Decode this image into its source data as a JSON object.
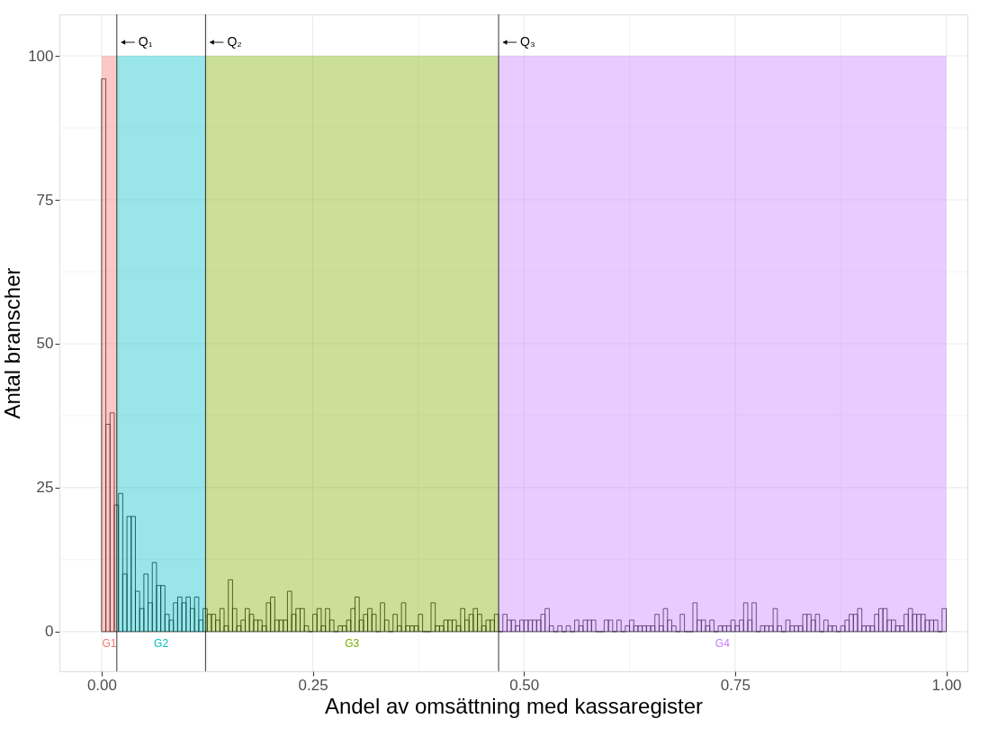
{
  "chart_data": {
    "type": "histogram",
    "xlabel": "Andel av omsättning med kassaregister",
    "ylabel": "Antal branscher",
    "bins": [
      0,
      0.005,
      0.01,
      0.015,
      0.02,
      0.025,
      0.03,
      0.035,
      0.04,
      0.045,
      0.05,
      0.055,
      0.06,
      0.065,
      0.07,
      0.075,
      0.08,
      0.085,
      0.09,
      0.095,
      0.1,
      0.105,
      0.11,
      0.115,
      0.12,
      0.125,
      0.13,
      0.135,
      0.14,
      0.145,
      0.15,
      0.155,
      0.16,
      0.165,
      0.17,
      0.175,
      0.18,
      0.185,
      0.19,
      0.195,
      0.2,
      0.205,
      0.21,
      0.215,
      0.22,
      0.225,
      0.23,
      0.235,
      0.24,
      0.245,
      0.25,
      0.255,
      0.26,
      0.265,
      0.27,
      0.275,
      0.28,
      0.285,
      0.29,
      0.295,
      0.3,
      0.305,
      0.31,
      0.315,
      0.32,
      0.325,
      0.33,
      0.335,
      0.34,
      0.345,
      0.35,
      0.355,
      0.36,
      0.365,
      0.37,
      0.375,
      0.38,
      0.385,
      0.39,
      0.395,
      0.4,
      0.405,
      0.41,
      0.415,
      0.42,
      0.425,
      0.43,
      0.435,
      0.44,
      0.445,
      0.45,
      0.455,
      0.46,
      0.465,
      0.47,
      0.475,
      0.48,
      0.485,
      0.49,
      0.495,
      0.5,
      0.505,
      0.51,
      0.515,
      0.52,
      0.525,
      0.53,
      0.535,
      0.54,
      0.545,
      0.55,
      0.555,
      0.56,
      0.565,
      0.57,
      0.575,
      0.58,
      0.585,
      0.59,
      0.595,
      0.6,
      0.605,
      0.61,
      0.615,
      0.62,
      0.625,
      0.63,
      0.635,
      0.64,
      0.645,
      0.65,
      0.655,
      0.66,
      0.665,
      0.67,
      0.675,
      0.68,
      0.685,
      0.69,
      0.695,
      0.7,
      0.705,
      0.71,
      0.715,
      0.72,
      0.725,
      0.73,
      0.735,
      0.74,
      0.745,
      0.75,
      0.755,
      0.76,
      0.765,
      0.77,
      0.775,
      0.78,
      0.785,
      0.79,
      0.795,
      0.8,
      0.805,
      0.81,
      0.815,
      0.82,
      0.825,
      0.83,
      0.835,
      0.84,
      0.845,
      0.85,
      0.855,
      0.86,
      0.865,
      0.87,
      0.875,
      0.88,
      0.885,
      0.89,
      0.895,
      0.9,
      0.905,
      0.91,
      0.915,
      0.92,
      0.925,
      0.93,
      0.935,
      0.94,
      0.945,
      0.95,
      0.955,
      0.96,
      0.965,
      0.97,
      0.975,
      0.98,
      0.985,
      0.99,
      0.995,
      1
    ],
    "values": [
      96,
      36,
      38,
      22,
      24,
      10,
      20,
      20,
      7,
      4,
      10,
      5,
      12,
      8,
      8,
      3,
      2,
      5,
      6,
      5,
      6,
      4,
      6,
      2,
      4,
      3,
      3,
      2,
      4,
      1,
      9,
      4,
      1,
      2,
      4,
      3,
      2,
      2,
      1,
      5,
      6,
      2,
      2,
      2,
      7,
      3,
      4,
      4,
      1,
      0,
      3,
      4,
      1,
      4,
      2,
      0,
      1,
      1,
      2,
      4,
      6,
      2,
      3,
      4,
      3,
      0,
      5,
      2,
      0,
      3,
      1,
      5,
      1,
      1,
      1,
      3,
      0,
      0,
      5,
      1,
      1,
      2,
      2,
      2,
      1,
      4,
      2,
      3,
      4,
      3,
      1,
      2,
      2,
      3,
      0,
      3,
      2,
      2,
      1,
      2,
      2,
      2,
      2,
      2,
      3,
      4,
      1,
      0,
      1,
      0,
      1,
      0,
      2,
      1,
      2,
      2,
      2,
      0,
      0,
      2,
      2,
      0,
      2,
      0,
      1,
      2,
      1,
      1,
      1,
      1,
      1,
      3,
      1,
      4,
      2,
      1,
      0,
      3,
      0,
      0,
      5,
      2,
      2,
      1,
      2,
      0,
      1,
      1,
      1,
      2,
      1,
      2,
      5,
      2,
      5,
      0,
      1,
      1,
      1,
      4,
      1,
      0,
      2,
      1,
      1,
      1,
      3,
      3,
      2,
      3,
      0,
      2,
      1,
      1,
      0,
      1,
      2,
      3,
      3,
      4,
      1,
      1,
      1,
      3,
      4,
      4,
      2,
      2,
      1,
      1,
      3,
      4,
      3,
      3,
      3,
      2,
      2,
      2,
      0,
      4
    ],
    "color": "#000000",
    "xlim": [
      -0.05,
      1.025
    ],
    "ylim": [
      -6.9,
      107.2
    ],
    "xticks": [
      {
        "value": 0,
        "label": "0.00"
      },
      {
        "value": 0.25,
        "label": "0.25"
      },
      {
        "value": 0.5,
        "label": "0.50"
      },
      {
        "value": 0.75,
        "label": "0.75"
      },
      {
        "value": 1,
        "label": "1.00"
      }
    ],
    "yticks": [
      0,
      25,
      50,
      75,
      100
    ],
    "grid": true,
    "bands": [
      {
        "axis": "x",
        "from": 0,
        "to": 0.018,
        "label": "G1",
        "color": "#F8766D"
      },
      {
        "axis": "x",
        "from": 0.018,
        "to": 0.123,
        "label": "G2",
        "color": "#00BFC4"
      },
      {
        "axis": "x",
        "from": 0.123,
        "to": 0.47,
        "label": "G3",
        "color": "#7CAE00"
      },
      {
        "axis": "x",
        "from": 0.47,
        "to": 1,
        "label": "G4",
        "color": "#C77CFF"
      }
    ],
    "ref_lines": [
      {
        "axis": "x",
        "value": 0.018,
        "label": "Q₁"
      },
      {
        "axis": "x",
        "value": 0.123,
        "label": "Q₂"
      },
      {
        "axis": "x",
        "value": 0.47,
        "label": "Q₃"
      }
    ]
  }
}
